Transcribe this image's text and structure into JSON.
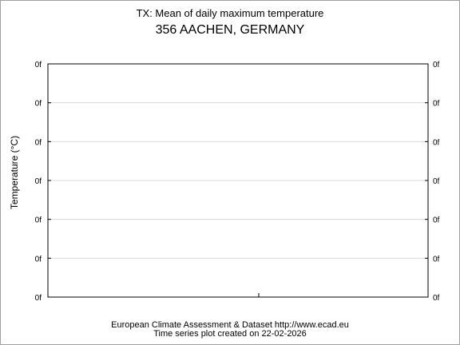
{
  "chart_data": {
    "type": "line",
    "title": "TX: Mean of daily maximum temperature",
    "subtitle": "356 AACHEN, GERMANY",
    "ylabel": "Temperature (°C)",
    "xlabel": "",
    "y_tick_labels": [
      "0f",
      "0f",
      "0f",
      "0f",
      "0f",
      "0f",
      "0f"
    ],
    "grid": true,
    "series": [],
    "footer": {
      "line1": "European Climate Assessment & Dataset  http://www.ecad.eu",
      "line2": "Time series plot created on 22-02-2026"
    },
    "colors": {
      "frame": "#a0a0a0",
      "grid": "#d8d8d8",
      "axis": "#000000"
    }
  }
}
